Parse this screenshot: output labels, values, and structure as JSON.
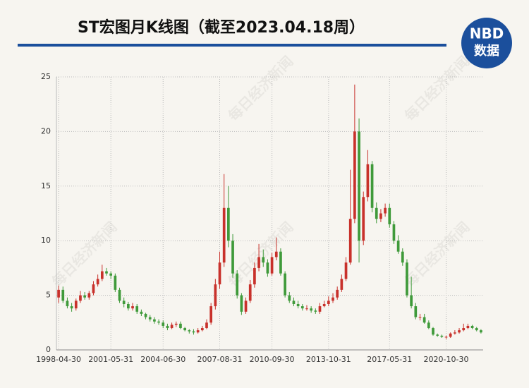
{
  "chart_data": {
    "type": "candlestick",
    "title": "ST宏图月K线图（截至2023.04.18周）",
    "logo_top": "NBD",
    "logo_bottom": "数据",
    "watermark": "每日经济新闻",
    "up_color": "#c8312b",
    "down_color": "#3f9a3a",
    "grid": true,
    "ylim": [
      0,
      25
    ],
    "yticks": [
      0,
      5,
      10,
      15,
      20,
      25
    ],
    "categories": [
      "1998-04-30",
      null,
      null,
      null,
      null,
      null,
      null,
      null,
      null,
      null,
      null,
      null,
      "2001-05-31",
      null,
      null,
      null,
      null,
      null,
      null,
      null,
      null,
      null,
      null,
      null,
      "2004-06-30",
      null,
      null,
      null,
      null,
      null,
      null,
      null,
      null,
      null,
      null,
      null,
      null,
      "2007-08-31",
      null,
      null,
      null,
      null,
      null,
      null,
      null,
      null,
      null,
      null,
      null,
      "2010-09-30",
      null,
      null,
      null,
      null,
      null,
      null,
      null,
      null,
      null,
      null,
      null,
      null,
      "2013-10-31",
      null,
      null,
      null,
      null,
      null,
      null,
      null,
      null,
      null,
      null,
      null,
      null,
      null,
      "2017-05-31",
      null,
      null,
      null,
      null,
      null,
      null,
      null,
      null,
      null,
      null,
      null,
      null,
      "2020-10-30",
      null,
      null,
      null,
      null,
      null,
      null,
      null,
      null
    ],
    "open": [
      4.8,
      5.5,
      4.5,
      4.0,
      3.8,
      4.5,
      5.0,
      4.8,
      5.2,
      6.0,
      6.5,
      7.2,
      7.0,
      6.8,
      5.5,
      4.5,
      4.2,
      3.8,
      4.0,
      3.5,
      3.3,
      3.0,
      2.8,
      2.6,
      2.5,
      2.2,
      2.0,
      2.3,
      2.4,
      2.0,
      1.8,
      1.7,
      1.6,
      1.8,
      2.0,
      2.5,
      4.0,
      6.0,
      8.0,
      13.0,
      10,
      7,
      5,
      3.5,
      4.5,
      6,
      7.5,
      8.5,
      8,
      7,
      8.5,
      9.0,
      7,
      5,
      4.5,
      4.2,
      4.0,
      3.8,
      3.8,
      3.6,
      3.5,
      4.0,
      4.2,
      4.5,
      4.8,
      5.5,
      6.5,
      8.0,
      12,
      20,
      10,
      14,
      17,
      13,
      12,
      12.5,
      13,
      11.5,
      10,
      9.0,
      8,
      5,
      4,
      3,
      3.0,
      2.5,
      2.0,
      1.4,
      1.3,
      1.2,
      1.2,
      1.5,
      1.6,
      1.8,
      2.0,
      2.2,
      2.0,
      1.8
    ],
    "close": [
      5.5,
      4.5,
      4.0,
      3.8,
      4.5,
      5.0,
      4.8,
      5.2,
      6.0,
      6.5,
      7.2,
      7.0,
      6.8,
      5.5,
      4.5,
      4.2,
      3.8,
      4.0,
      3.5,
      3.3,
      3.0,
      2.8,
      2.6,
      2.5,
      2.2,
      2.0,
      2.3,
      2.4,
      2.0,
      1.8,
      1.7,
      1.6,
      1.8,
      2.0,
      2.5,
      4.0,
      6.0,
      8.0,
      13.0,
      10,
      7,
      5,
      3.5,
      4.5,
      6,
      7.5,
      8.5,
      8,
      7,
      8.5,
      9.0,
      7,
      5,
      4.5,
      4.2,
      4.0,
      3.8,
      3.8,
      3.6,
      3.5,
      4.0,
      4.2,
      4.5,
      4.8,
      5.5,
      6.5,
      8.0,
      12,
      20,
      10,
      14,
      17,
      13,
      12,
      12.5,
      13,
      11.5,
      10,
      9.0,
      8,
      5,
      4,
      3,
      3.0,
      2.5,
      2.0,
      1.4,
      1.3,
      1.2,
      1.2,
      1.5,
      1.6,
      1.8,
      2.0,
      2.2,
      2.0,
      1.8,
      1.6
    ],
    "high": [
      5.9,
      5.8,
      4.8,
      4.3,
      4.7,
      5.4,
      5.3,
      5.4,
      6.3,
      6.9,
      7.8,
      7.5,
      7.2,
      7.0,
      5.7,
      4.8,
      4.4,
      4.3,
      4.2,
      3.7,
      3.4,
      3.2,
      3.0,
      2.8,
      2.7,
      2.4,
      2.5,
      2.6,
      2.6,
      2.1,
      1.9,
      1.9,
      2.0,
      2.2,
      2.8,
      4.3,
      6.5,
      9.0,
      16.1,
      15.0,
      10.6,
      7.3,
      5.2,
      4.8,
      6.4,
      8.0,
      9.7,
      9.2,
      8.3,
      8.9,
      10.3,
      9.3,
      7.2,
      5.3,
      4.8,
      4.5,
      4.2,
      4.1,
      4.0,
      3.8,
      4.3,
      4.5,
      4.9,
      5.2,
      5.8,
      6.9,
      8.5,
      16.5,
      24.3,
      21.2,
      14.5,
      18.3,
      17.3,
      13.5,
      12.9,
      13.4,
      13.4,
      11.8,
      10.5,
      9.3,
      8.3,
      6.7,
      4.3,
      3.3,
      3.3,
      2.7,
      2.1,
      1.5,
      1.4,
      1.3,
      1.6,
      1.8,
      2.0,
      2.4,
      2.4,
      2.3,
      2.1,
      1.9
    ],
    "low": [
      4.3,
      4.3,
      3.8,
      3.5,
      3.6,
      4.3,
      4.6,
      4.6,
      5.0,
      5.8,
      6.3,
      6.8,
      6.5,
      5.3,
      4.3,
      3.9,
      3.6,
      3.6,
      3.3,
      3.1,
      2.8,
      2.6,
      2.4,
      2.3,
      2.0,
      1.8,
      1.9,
      2.1,
      1.9,
      1.7,
      1.5,
      1.4,
      1.5,
      1.7,
      1.9,
      2.3,
      3.7,
      5.6,
      7.6,
      9.4,
      6.6,
      4.7,
      3.2,
      3.3,
      4.3,
      5.7,
      7.2,
      7.6,
      6.7,
      6.8,
      8.2,
      6.8,
      4.8,
      4.3,
      4.0,
      3.8,
      3.6,
      3.6,
      3.4,
      3.3,
      3.3,
      3.9,
      4.0,
      4.3,
      4.6,
      5.3,
      6.3,
      7.8,
      11.6,
      8.0,
      9.6,
      13.6,
      12.6,
      11.6,
      11.7,
      12.2,
      11.2,
      9.7,
      8.8,
      7.7,
      4.8,
      3.8,
      2.8,
      2.7,
      2.4,
      1.9,
      1.3,
      1.2,
      1.1,
      1.0,
      1.1,
      1.4,
      1.5,
      1.7,
      1.9,
      1.9,
      1.7,
      1.5
    ]
  }
}
